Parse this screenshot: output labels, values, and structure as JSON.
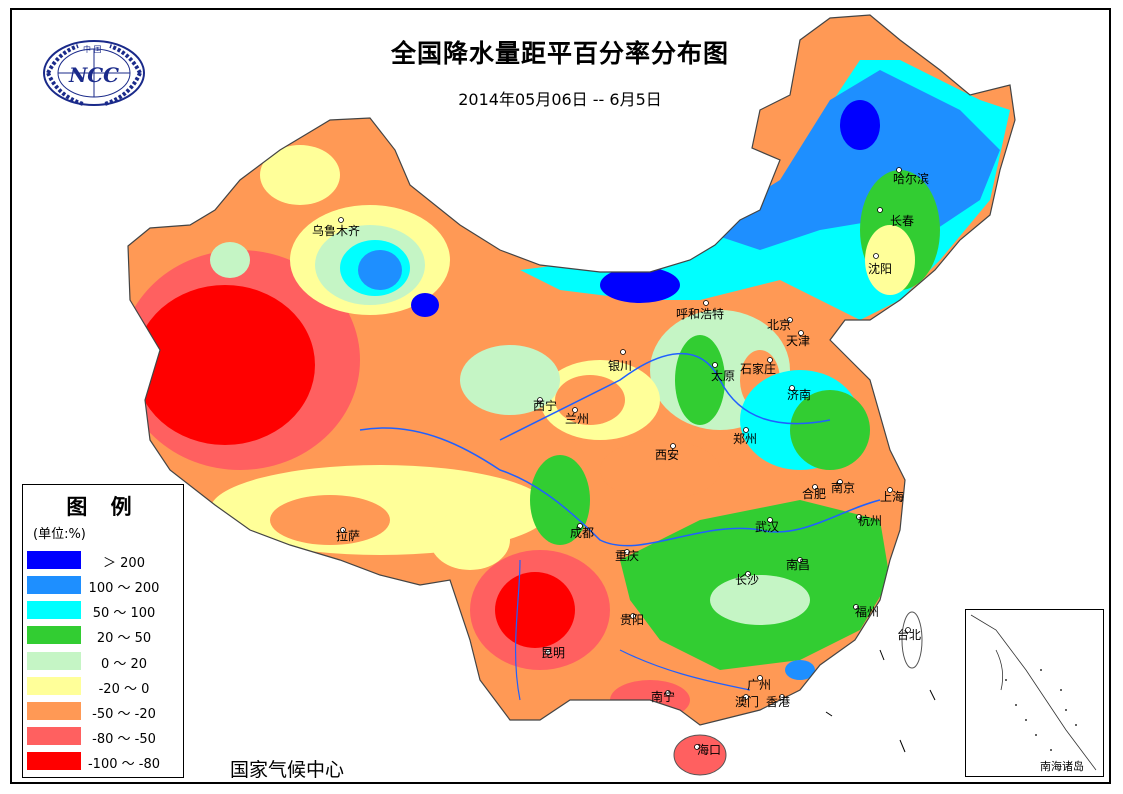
{
  "title": "全国降水量距平百分率分布图",
  "subtitle": "2014年05月06日 -- 6月5日",
  "agency": "国家气候中心",
  "logo": {
    "text": "NCC",
    "top_text": "中 国"
  },
  "legend": {
    "title": "图 例",
    "unit": "(单位:%)",
    "items": [
      {
        "label": "＞ 200",
        "color": "#0000ff"
      },
      {
        "label": "100 ～ 200",
        "color": "#1e8fff"
      },
      {
        "label": "50 ～ 100",
        "color": "#00ffff"
      },
      {
        "label": "20 ～ 50",
        "color": "#32cd32"
      },
      {
        "label": "0 ～ 20",
        "color": "#c5f5c5"
      },
      {
        "label": "-20 ～ 0",
        "color": "#ffff99"
      },
      {
        "label": "-50 ～ -20",
        "color": "#ff9955"
      },
      {
        "label": "-80 ～ -50",
        "color": "#ff6060"
      },
      {
        "label": "-100 ～ -80",
        "color": "#ff0000"
      }
    ]
  },
  "inset_label": "南海诸岛",
  "cities": [
    {
      "name": "乌鲁木齐"
    },
    {
      "name": "哈尔滨"
    },
    {
      "name": "长春"
    },
    {
      "name": "沈阳"
    },
    {
      "name": "呼和浩特"
    },
    {
      "name": "北京"
    },
    {
      "name": "天津"
    },
    {
      "name": "石家庄"
    },
    {
      "name": "太原"
    },
    {
      "name": "银川"
    },
    {
      "name": "济南"
    },
    {
      "name": "西宁"
    },
    {
      "name": "兰州"
    },
    {
      "name": "郑州"
    },
    {
      "name": "西安"
    },
    {
      "name": "合肥"
    },
    {
      "name": "南京"
    },
    {
      "name": "上海"
    },
    {
      "name": "拉萨"
    },
    {
      "name": "成都"
    },
    {
      "name": "武汉"
    },
    {
      "name": "杭州"
    },
    {
      "name": "重庆"
    },
    {
      "name": "南昌"
    },
    {
      "name": "长沙"
    },
    {
      "name": "福州"
    },
    {
      "name": "台北"
    },
    {
      "name": "贵阳"
    },
    {
      "name": "昆明"
    },
    {
      "name": "南宁"
    },
    {
      "name": "广州"
    },
    {
      "name": "澳门"
    },
    {
      "name": "香港"
    },
    {
      "name": "海口"
    }
  ]
}
